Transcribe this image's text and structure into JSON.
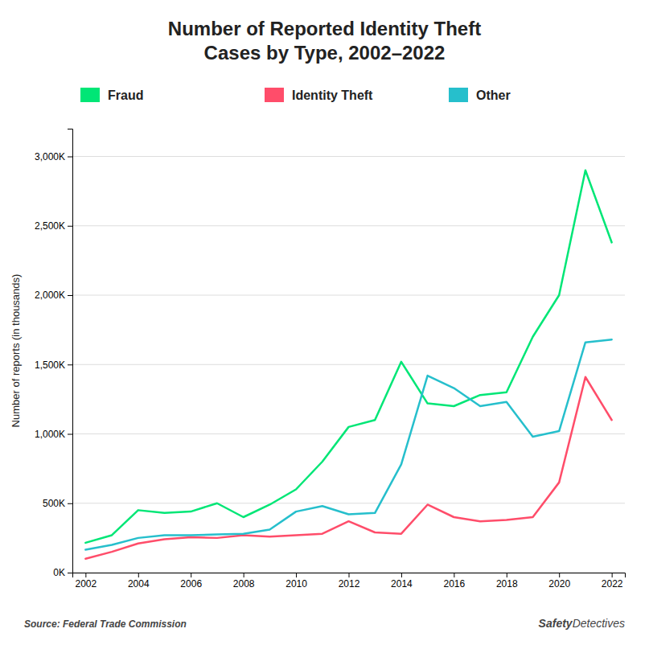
{
  "chart_data": {
    "type": "line",
    "title": "Number of Reported Identity Theft\nCases by Type, 2002–2022",
    "y_label": "Number of reports (in thousands)",
    "annotations": [
      "Source: Federal Trade Commission",
      "Safety",
      "Detectives"
    ],
    "x": [
      2002,
      2003,
      2004,
      2005,
      2006,
      2007,
      2008,
      2009,
      2010,
      2011,
      2012,
      2013,
      2014,
      2015,
      2016,
      2017,
      2018,
      2019,
      2020,
      2021,
      2022
    ],
    "series": [
      {
        "name": "Fraud",
        "color": "#00e676",
        "values": [
          215000,
          270000,
          450000,
          430000,
          440000,
          500000,
          400000,
          490000,
          600000,
          800000,
          1050000,
          1100000,
          1520000,
          1220000,
          1200000,
          1280000,
          1300000,
          1700000,
          2000000,
          2900000,
          2380000
        ]
      },
      {
        "name": "Identity Theft",
        "color": "#ff4d6a",
        "values": [
          100000,
          150000,
          210000,
          240000,
          255000,
          250000,
          270000,
          260000,
          270000,
          280000,
          370000,
          290000,
          280000,
          490000,
          400000,
          370000,
          380000,
          400000,
          650000,
          1410000,
          1100000
        ]
      },
      {
        "name": "Other",
        "color": "#26bfcc",
        "values": [
          165000,
          200000,
          250000,
          270000,
          270000,
          275000,
          280000,
          310000,
          440000,
          480000,
          420000,
          430000,
          780000,
          1420000,
          1330000,
          1200000,
          1230000,
          980000,
          1020000,
          1660000,
          1680000
        ]
      }
    ],
    "xlim": [
      2001.5,
      2022.5
    ],
    "xticks": [
      2002,
      2004,
      2006,
      2008,
      2010,
      2012,
      2014,
      2016,
      2018,
      2020,
      2022
    ],
    "ylim": [
      0,
      3200000
    ],
    "yticks": [
      {
        "value": 0,
        "label": "0K"
      },
      {
        "value": 500000,
        "label": "500K"
      },
      {
        "value": 1000000,
        "label": "1,000K"
      },
      {
        "value": 1500000,
        "label": "1,500K"
      },
      {
        "value": 2000000,
        "label": "2,000K"
      },
      {
        "value": 2500000,
        "label": "2,500K"
      },
      {
        "value": 3000000,
        "label": "3,000K"
      }
    ],
    "grid": true,
    "legend": "top"
  }
}
